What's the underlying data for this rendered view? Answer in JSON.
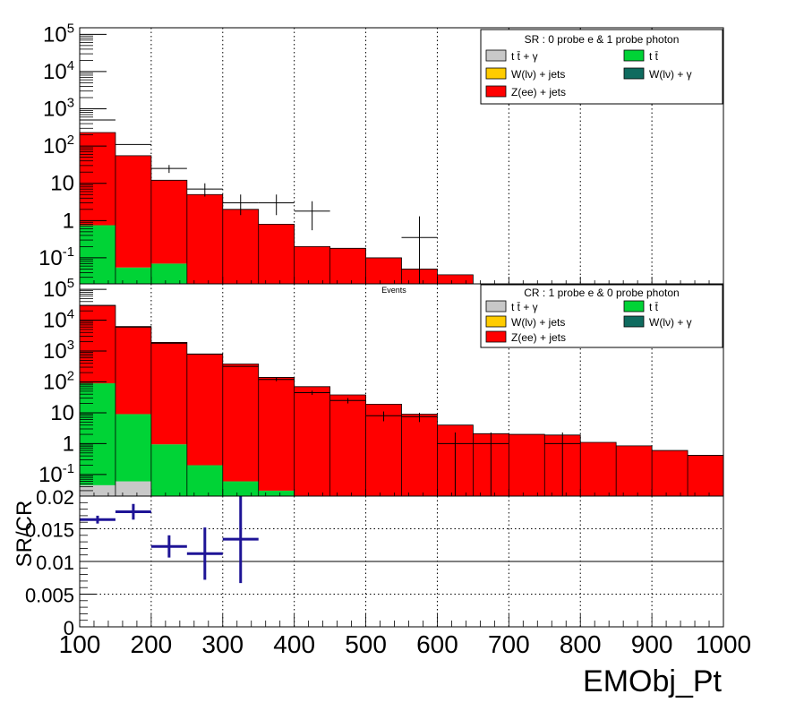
{
  "chart_data": [
    {
      "type": "bar",
      "panel": "top",
      "stacked": true,
      "log_y": true,
      "ylim": [
        0.02,
        150000
      ],
      "xlim": [
        100,
        1000
      ],
      "bin_edges": [
        100,
        150,
        200,
        250,
        300,
        350,
        400,
        450,
        500,
        550,
        600,
        650,
        700,
        750,
        800,
        850,
        900,
        950,
        1000
      ],
      "ytick_labels": [
        "10^-1",
        "1",
        "10",
        "10^2",
        "10^3",
        "10^4",
        "10^5"
      ],
      "legend": {
        "title": "SR : 0 probe e & 1 probe photon",
        "placement": "top-right",
        "entries": [
          {
            "label": "t t̄ + γ",
            "color": "#c8c8c8"
          },
          {
            "label": "t t̄",
            "color": "#00d336"
          },
          {
            "label": "W(lν) + jets",
            "color": "#ffcc00"
          },
          {
            "label": "W(lν) + γ",
            "color": "#0f6b5f"
          },
          {
            "label": "Z(ee) + jets",
            "color": "#ff0000"
          }
        ]
      },
      "series": [
        {
          "id": "ttgamma",
          "color": "#c8c8c8",
          "values": [
            0,
            0,
            0,
            0,
            0,
            0,
            0,
            0,
            0,
            0,
            0,
            0,
            0,
            0,
            0,
            0,
            0,
            0
          ]
        },
        {
          "id": "ttbar",
          "color": "#00d336",
          "values": [
            0.75,
            0.055,
            0.07,
            0,
            0,
            0,
            0,
            0,
            0,
            0,
            0,
            0,
            0,
            0,
            0,
            0,
            0,
            0
          ]
        },
        {
          "id": "wjets",
          "color": "#ffcc00",
          "values": [
            0,
            0,
            0,
            0,
            0,
            0,
            0,
            0,
            0,
            0,
            0,
            0,
            0,
            0,
            0,
            0,
            0,
            0
          ]
        },
        {
          "id": "wgamma",
          "color": "#0f6b5f",
          "values": [
            0,
            0,
            0,
            0,
            0,
            0,
            0,
            0,
            0,
            0,
            0,
            0,
            0,
            0,
            0,
            0,
            0,
            0
          ]
        },
        {
          "id": "zjets",
          "color": "#ff0000",
          "values": [
            230,
            55,
            12,
            5,
            2,
            0.8,
            0.2,
            0.18,
            0.1,
            0.05,
            0.035,
            0,
            0,
            0,
            0,
            0,
            0,
            0
          ]
        }
      ],
      "data_points": [
        {
          "x": 125,
          "y": 500,
          "ylo": 0,
          "yhi": 0
        },
        {
          "x": 175,
          "y": 110,
          "ylo": 0,
          "yhi": 0
        },
        {
          "x": 225,
          "y": 25,
          "ylo": 19,
          "yhi": 31
        },
        {
          "x": 275,
          "y": 7,
          "ylo": 4.4,
          "yhi": 10
        },
        {
          "x": 325,
          "y": 3,
          "ylo": 1.4,
          "yhi": 5
        },
        {
          "x": 375,
          "y": 3,
          "ylo": 1.4,
          "yhi": 5
        },
        {
          "x": 425,
          "y": 1.8,
          "ylo": 0.55,
          "yhi": 3.3
        },
        {
          "x": 575,
          "y": 0.35,
          "ylo": 0.02,
          "yhi": 1.3
        }
      ]
    },
    {
      "type": "bar",
      "panel": "middle",
      "stacked": true,
      "log_y": true,
      "ylim": [
        0.02,
        150000
      ],
      "xlim": [
        100,
        1000
      ],
      "bin_edges": [
        100,
        150,
        200,
        250,
        300,
        350,
        400,
        450,
        500,
        550,
        600,
        650,
        700,
        750,
        800,
        850,
        900,
        950,
        1000
      ],
      "ytick_labels": [
        "10^-1",
        "1",
        "10",
        "10^2",
        "10^3",
        "10^4",
        "10^5"
      ],
      "annotation": "Events",
      "legend": {
        "title": "CR : 1 probe e & 0 probe photon",
        "placement": "top-right",
        "entries": [
          {
            "label": "t t̄ + γ",
            "color": "#c8c8c8"
          },
          {
            "label": "t t̄",
            "color": "#00d336"
          },
          {
            "label": "W(lν) + jets",
            "color": "#ffcc00"
          },
          {
            "label": "W(lν) + γ",
            "color": "#0f6b5f"
          },
          {
            "label": "Z(ee) + jets",
            "color": "#ff0000"
          }
        ]
      },
      "series": [
        {
          "id": "ttgamma",
          "color": "#c8c8c8",
          "values": [
            0.045,
            0.06,
            0,
            0,
            0,
            0,
            0,
            0,
            0,
            0,
            0,
            0,
            0,
            0,
            0,
            0,
            0,
            0
          ]
        },
        {
          "id": "ttbar",
          "color": "#00d336",
          "values": [
            90,
            9,
            0.95,
            0.2,
            0.06,
            0.03,
            0,
            0,
            0,
            0,
            0,
            0,
            0,
            0,
            0,
            0,
            0,
            0
          ]
        },
        {
          "id": "wjets",
          "color": "#ffcc00",
          "values": [
            0,
            0,
            0,
            0,
            0,
            0,
            0,
            0,
            0,
            0,
            0,
            0,
            0,
            0,
            0,
            0,
            0,
            0
          ]
        },
        {
          "id": "wgamma",
          "color": "#0f6b5f",
          "values": [
            0,
            0,
            0,
            0,
            0,
            0,
            0,
            0,
            0,
            0,
            0,
            0,
            0,
            0,
            0,
            0,
            0,
            0
          ]
        },
        {
          "id": "zjets",
          "color": "#ff0000",
          "values": [
            30000,
            6200,
            1900,
            800,
            380,
            140,
            70,
            38,
            19,
            9,
            4,
            2.1,
            2,
            1.9,
            1.1,
            0.85,
            0.6,
            0.42
          ]
        }
      ],
      "data_points": [
        {
          "x": 125,
          "y": 30000,
          "ylo": 0,
          "yhi": 0
        },
        {
          "x": 175,
          "y": 6000,
          "ylo": 0,
          "yhi": 0
        },
        {
          "x": 225,
          "y": 1800,
          "ylo": 0,
          "yhi": 0
        },
        {
          "x": 275,
          "y": 800,
          "ylo": 0,
          "yhi": 0
        },
        {
          "x": 325,
          "y": 320,
          "ylo": 0,
          "yhi": 0
        },
        {
          "x": 375,
          "y": 120,
          "ylo": 105,
          "yhi": 135
        },
        {
          "x": 425,
          "y": 45,
          "ylo": 38,
          "yhi": 52
        },
        {
          "x": 475,
          "y": 25,
          "ylo": 20,
          "yhi": 30
        },
        {
          "x": 525,
          "y": 8,
          "ylo": 5.3,
          "yhi": 11
        },
        {
          "x": 575,
          "y": 7.5,
          "ylo": 5,
          "yhi": 10
        },
        {
          "x": 625,
          "y": 1,
          "ylo": 0.02,
          "yhi": 2.3
        },
        {
          "x": 675,
          "y": 1,
          "ylo": 0.02,
          "yhi": 2.3
        },
        {
          "x": 775,
          "y": 1,
          "ylo": 0.02,
          "yhi": 2.3
        }
      ]
    },
    {
      "type": "scatter",
      "panel": "bottom",
      "ylabel": "SR/CR",
      "xlabel": "EMObj_Pt",
      "xlim": [
        100,
        1000
      ],
      "ylim": [
        0,
        0.02
      ],
      "yticks": [
        0,
        0.005,
        0.01,
        0.015,
        0.02
      ],
      "ytick_labels": [
        "0",
        "0.005",
        "0.01",
        "0.015",
        "0.02"
      ],
      "xticks": [
        100,
        200,
        300,
        400,
        500,
        600,
        700,
        800,
        900,
        1000
      ],
      "xtick_labels": [
        "100",
        "200",
        "300",
        "400",
        "500",
        "600",
        "700",
        "800",
        "900",
        "1000"
      ],
      "grid": true,
      "color": "#1e1496",
      "points": [
        {
          "x": 125,
          "xerr": 25,
          "y": 0.0164,
          "yerr": 0.0006
        },
        {
          "x": 175,
          "xerr": 25,
          "y": 0.0176,
          "yerr": 0.0012
        },
        {
          "x": 225,
          "xerr": 25,
          "y": 0.0123,
          "yerr": 0.0017
        },
        {
          "x": 275,
          "xerr": 25,
          "y": 0.0112,
          "yerr": 0.004
        },
        {
          "x": 325,
          "xerr": 25,
          "y": 0.0134,
          "yerr": 0.0067
        }
      ]
    }
  ]
}
